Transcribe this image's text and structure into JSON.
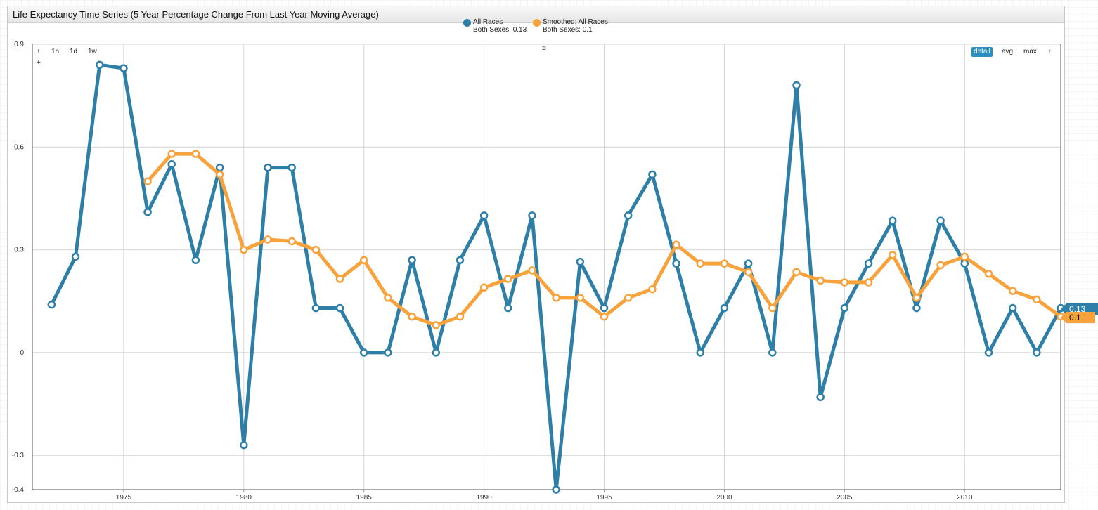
{
  "window": {
    "title": "Life Expectancy Time Series (5 Year Percentage Change From Last Year Moving Average)"
  },
  "legend": {
    "menu_icon": "≡",
    "items": [
      {
        "line1": "All Races",
        "line2": "Both Sexes: 0.13",
        "color": "#2e7fa8"
      },
      {
        "line1": "Smoothed: All Races",
        "line2": "Both Sexes: 0.1",
        "color": "#f7a23a"
      }
    ]
  },
  "controls": {
    "zoom": [
      "+",
      "1h",
      "1d",
      "1w"
    ],
    "zoom_extra": "+",
    "aggregation": [
      "detail",
      "avg",
      "max",
      "+"
    ],
    "active_aggregation": "detail"
  },
  "flags": {
    "series1": "0.13",
    "series2": "0.1"
  },
  "chart_data": {
    "type": "line",
    "title": "Life Expectancy Time Series (5 Year Percentage Change From Last Year Moving Average)",
    "xlabel": "",
    "ylabel": "",
    "x_ticks": [
      "1975",
      "1980",
      "1985",
      "1990",
      "1995",
      "2000",
      "2005",
      "2010"
    ],
    "y_ticks": [
      "0.9",
      "0.6",
      "0.3",
      "0",
      "-0.3",
      "-0.4"
    ],
    "xlim": [
      1971.2,
      2014
    ],
    "ylim": [
      -0.4,
      0.9
    ],
    "grid": true,
    "legend_position": "top-center",
    "series": [
      {
        "name": "All Races Both Sexes",
        "color": "#2e7fa8",
        "x": [
          1972,
          1973,
          1974,
          1975,
          1976,
          1977,
          1978,
          1979,
          1980,
          1981,
          1982,
          1983,
          1984,
          1985,
          1986,
          1987,
          1988,
          1989,
          1990,
          1991,
          1992,
          1993,
          1994,
          1995,
          1996,
          1997,
          1998,
          1999,
          2000,
          2001,
          2002,
          2003,
          2004,
          2005,
          2006,
          2007,
          2008,
          2009,
          2010,
          2011,
          2012,
          2013,
          2014
        ],
        "y": [
          0.14,
          0.28,
          0.84,
          0.83,
          0.41,
          0.55,
          0.27,
          0.54,
          -0.27,
          0.54,
          0.54,
          0.13,
          0.13,
          0,
          0,
          0.27,
          0,
          0.27,
          0.4,
          0.13,
          0.4,
          -0.4,
          0.265,
          0.13,
          0.4,
          0.52,
          0.26,
          0,
          0.13,
          0.26,
          0,
          0.78,
          -0.13,
          0.13,
          0.26,
          0.385,
          0.13,
          0.385,
          0.26,
          0,
          0.13,
          0,
          0.13
        ]
      },
      {
        "name": "Smoothed: All Races Both Sexes",
        "color": "#f7a23a",
        "x": [
          1976,
          1977,
          1978,
          1979,
          1980,
          1981,
          1982,
          1983,
          1984,
          1985,
          1986,
          1987,
          1988,
          1989,
          1990,
          1991,
          1992,
          1993,
          1994,
          1995,
          1996,
          1997,
          1998,
          1999,
          2000,
          2001,
          2002,
          2003,
          2004,
          2005,
          2006,
          2007,
          2008,
          2009,
          2010,
          2011,
          2012,
          2013,
          2014
        ],
        "y": [
          0.5,
          0.58,
          0.58,
          0.52,
          0.3,
          0.33,
          0.325,
          0.3,
          0.215,
          0.27,
          0.16,
          0.105,
          0.08,
          0.105,
          0.19,
          0.215,
          0.24,
          0.16,
          0.16,
          0.105,
          0.16,
          0.185,
          0.315,
          0.26,
          0.26,
          0.235,
          0.13,
          0.235,
          0.21,
          0.205,
          0.205,
          0.285,
          0.16,
          0.255,
          0.28,
          0.23,
          0.18,
          0.155,
          0.105
        ]
      }
    ]
  }
}
